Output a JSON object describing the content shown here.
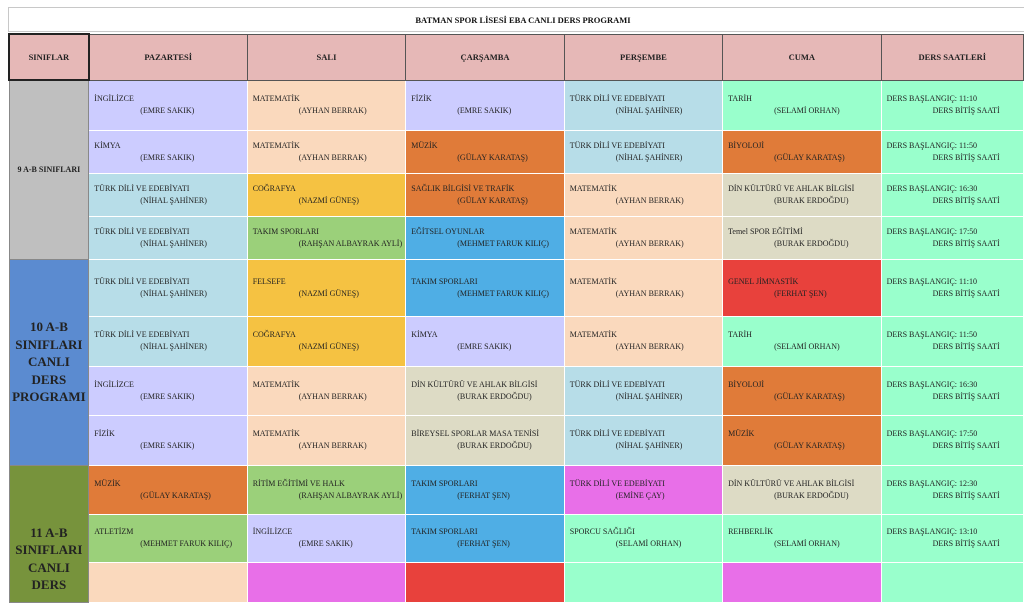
{
  "title": "BATMAN SPOR LİSESİ EBA CANLI DERS PROGRAMI",
  "headers": [
    "SINIFLAR",
    "PAZARTESİ",
    "SALI",
    "ÇARŞAMBA",
    "PERŞEMBE",
    "CUMA",
    "DERS SAATLERİ"
  ],
  "groups": [
    {
      "label": "9 A-B SINIFLARI"
    },
    {
      "label": "10 A-B SINIFLARI CANLI DERS PROGRAMI"
    },
    {
      "label": "11 A-B SINIFLARI CANLI DERS"
    }
  ],
  "rows": [
    [
      {
        "subject": "İNGİLİZCE",
        "teacher": "(EMRE SAKIK)",
        "color": "#ccccff"
      },
      {
        "subject": "MATEMATİK",
        "teacher": "(AYHAN BERRAK)",
        "color": "#fad9bd"
      },
      {
        "subject": "FİZİK",
        "teacher": "(EMRE SAKIK)",
        "color": "#ccccff"
      },
      {
        "subject": "TÜRK DİLİ VE EDEBİYATI",
        "teacher": "(NİHAL ŞAHİNER)",
        "color": "#b7dde8"
      },
      {
        "subject": "TARİH",
        "teacher": "(SELAMİ ORHAN)",
        "color": "#99ffcc"
      },
      {
        "subject": "DERS BAŞLANGIÇ: 11:10",
        "teacher": "DERS BİTİŞ SAATİ",
        "color": "#99ffcc"
      }
    ],
    [
      {
        "subject": "KİMYA",
        "teacher": "(EMRE SAKIK)",
        "color": "#ccccff"
      },
      {
        "subject": "MATEMATİK",
        "teacher": "(AYHAN BERRAK)",
        "color": "#fad9bd"
      },
      {
        "subject": "MÜZİK",
        "teacher": "(GÜLAY KARATAŞ)",
        "color": "#e07b39"
      },
      {
        "subject": "TÜRK DİLİ VE EDEBİYATI",
        "teacher": "(NİHAL ŞAHİNER)",
        "color": "#b7dde8"
      },
      {
        "subject": "BİYOLOJİ",
        "teacher": "(GÜLAY KARATAŞ)",
        "color": "#e07b39"
      },
      {
        "subject": "DERS BAŞLANGIÇ: 11:50",
        "teacher": "DERS BİTİŞ SAATİ",
        "color": "#99ffcc"
      }
    ],
    [
      {
        "subject": "TÜRK DİLİ VE EDEBİYATI",
        "teacher": "(NİHAL ŞAHİNER)",
        "color": "#b7dde8"
      },
      {
        "subject": "COĞRAFYA",
        "teacher": "(NAZMİ GÜNEŞ)",
        "color": "#f5c242"
      },
      {
        "subject": "SAĞLIK BİLGİSİ VE TRAFİK",
        "teacher": "(GÜLAY KARATAŞ)",
        "color": "#e07b39"
      },
      {
        "subject": "MATEMATİK",
        "teacher": "(AYHAN BERRAK)",
        "color": "#fad9bd"
      },
      {
        "subject": "DİN KÜLTÜRÜ VE AHLAK BİLGİSİ",
        "teacher": "(BURAK ERDOĞDU)",
        "color": "#dddbc5"
      },
      {
        "subject": "DERS BAŞLANGIÇ: 16:30",
        "teacher": "DERS BİTİŞ SAATİ",
        "color": "#99ffcc"
      }
    ],
    [
      {
        "subject": "TÜRK DİLİ VE EDEBİYATI",
        "teacher": "(NİHAL ŞAHİNER)",
        "color": "#b7dde8"
      },
      {
        "subject": "TAKIM SPORLARI",
        "teacher": "(RAHŞAN ALBAYRAK AYLİ)",
        "color": "#9bd07a"
      },
      {
        "subject": "EĞİTSEL OYUNLAR",
        "teacher": "(MEHMET FARUK KILIÇ)",
        "color": "#4faee5"
      },
      {
        "subject": "MATEMATİK",
        "teacher": "(AYHAN BERRAK)",
        "color": "#fad9bd"
      },
      {
        "subject": "Temel SPOR EĞİTİMİ",
        "teacher": "(BURAK ERDOĞDU)",
        "color": "#dddbc5"
      },
      {
        "subject": "DERS BAŞLANGIÇ: 17:50",
        "teacher": "DERS BİTİŞ SAATİ",
        "color": "#99ffcc"
      }
    ],
    [
      {
        "subject": "TÜRK DİLİ VE EDEBİYATI",
        "teacher": "(NİHAL ŞAHİNER)",
        "color": "#b7dde8"
      },
      {
        "subject": "FELSEFE",
        "teacher": "(NAZMİ GÜNEŞ)",
        "color": "#f5c242"
      },
      {
        "subject": "TAKIM SPORLARI",
        "teacher": "(MEHMET FARUK KILIÇ)",
        "color": "#4faee5"
      },
      {
        "subject": "MATEMATİK",
        "teacher": "(AYHAN BERRAK)",
        "color": "#fad9bd"
      },
      {
        "subject": "GENEL JİMNASTİK",
        "teacher": "(FERHAT ŞEN)",
        "color": "#e8413c"
      },
      {
        "subject": "DERS BAŞLANGIÇ: 11:10",
        "teacher": "DERS BİTİŞ SAATİ",
        "color": "#99ffcc"
      }
    ],
    [
      {
        "subject": "TÜRK DİLİ VE EDEBİYATI",
        "teacher": "(NİHAL ŞAHİNER)",
        "color": "#b7dde8"
      },
      {
        "subject": "COĞRAFYA",
        "teacher": "(NAZMİ GÜNEŞ)",
        "color": "#f5c242"
      },
      {
        "subject": "KİMYA",
        "teacher": "(EMRE SAKIK)",
        "color": "#ccccff"
      },
      {
        "subject": "MATEMATİK",
        "teacher": "(AYHAN BERRAK)",
        "color": "#fad9bd"
      },
      {
        "subject": "TARİH",
        "teacher": "(SELAMİ ORHAN)",
        "color": "#99ffcc"
      },
      {
        "subject": "DERS BAŞLANGIÇ: 11:50",
        "teacher": "DERS BİTİŞ SAATİ",
        "color": "#99ffcc"
      }
    ],
    [
      {
        "subject": "İNGİLİZCE",
        "teacher": "(EMRE SAKIK)",
        "color": "#ccccff"
      },
      {
        "subject": "MATEMATİK",
        "teacher": "(AYHAN BERRAK)",
        "color": "#fad9bd"
      },
      {
        "subject": "DİN KÜLTÜRÜ VE AHLAK BİLGİSİ",
        "teacher": "(BURAK ERDOĞDU)",
        "color": "#dddbc5"
      },
      {
        "subject": "TÜRK DİLİ VE EDEBİYATI",
        "teacher": "(NİHAL ŞAHİNER)",
        "color": "#b7dde8"
      },
      {
        "subject": "BİYOLOJİ",
        "teacher": "(GÜLAY KARATAŞ)",
        "color": "#e07b39"
      },
      {
        "subject": "DERS BAŞLANGIÇ: 16:30",
        "teacher": "DERS BİTİŞ SAATİ",
        "color": "#99ffcc"
      }
    ],
    [
      {
        "subject": "FİZİK",
        "teacher": "(EMRE SAKIK)",
        "color": "#ccccff"
      },
      {
        "subject": "MATEMATİK",
        "teacher": "(AYHAN BERRAK)",
        "color": "#fad9bd"
      },
      {
        "subject": "BİREYSEL SPORLAR MASA TENİSİ",
        "teacher": "(BURAK ERDOĞDU)",
        "color": "#dddbc5"
      },
      {
        "subject": "TÜRK DİLİ VE EDEBİYATI",
        "teacher": "(NİHAL ŞAHİNER)",
        "color": "#b7dde8"
      },
      {
        "subject": "MÜZİK",
        "teacher": "(GÜLAY KARATAŞ)",
        "color": "#e07b39"
      },
      {
        "subject": "DERS BAŞLANGIÇ: 17:50",
        "teacher": "DERS BİTİŞ SAATİ",
        "color": "#99ffcc"
      }
    ],
    [
      {
        "subject": "MÜZİK",
        "teacher": "(GÜLAY KARATAŞ)",
        "color": "#e07b39"
      },
      {
        "subject": "RİTİM EĞİTİMİ VE HALK",
        "teacher": "(RAHŞAN ALBAYRAK AYLİ)",
        "color": "#9bd07a"
      },
      {
        "subject": "TAKIM SPORLARI",
        "teacher": "(FERHAT ŞEN)",
        "color": "#4faee5"
      },
      {
        "subject": "TÜRK DİLİ VE EDEBİYATI",
        "teacher": "(EMİNE ÇAY)",
        "color": "#e86fe8"
      },
      {
        "subject": "DİN KÜLTÜRÜ VE AHLAK BİLGİSİ",
        "teacher": "(BURAK ERDOĞDU)",
        "color": "#dddbc5"
      },
      {
        "subject": "DERS BAŞLANGIÇ: 12:30",
        "teacher": "DERS BİTİŞ SAATİ",
        "color": "#99ffcc"
      }
    ],
    [
      {
        "subject": "ATLETİZM",
        "teacher": "(MEHMET FARUK KILIÇ)",
        "color": "#9bd07a"
      },
      {
        "subject": "İNGİLİZCE",
        "teacher": "(EMRE SAKIK)",
        "color": "#ccccff"
      },
      {
        "subject": "TAKIM SPORLARI",
        "teacher": "(FERHAT ŞEN)",
        "color": "#4faee5"
      },
      {
        "subject": "SPORCU SAĞLIĞI",
        "teacher": "(SELAMİ ORHAN)",
        "color": "#99ffcc"
      },
      {
        "subject": "REHBERLİK",
        "teacher": "(SELAMİ ORHAN)",
        "color": "#99ffcc"
      },
      {
        "subject": "DERS BAŞLANGIÇ: 13:10",
        "teacher": "DERS BİTİŞ SAATİ",
        "color": "#99ffcc"
      }
    ],
    [
      {
        "subject": "",
        "teacher": "",
        "color": "#fad9bd"
      },
      {
        "subject": "",
        "teacher": "",
        "color": "#e86fe8"
      },
      {
        "subject": "",
        "teacher": "",
        "color": "#e8413c"
      },
      {
        "subject": "",
        "teacher": "",
        "color": "#99ffcc"
      },
      {
        "subject": "",
        "teacher": "",
        "color": "#e86fe8"
      },
      {
        "subject": "",
        "teacher": "",
        "color": "#99ffcc"
      }
    ]
  ]
}
